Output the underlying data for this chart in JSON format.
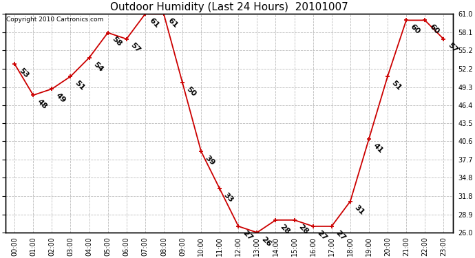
{
  "title": "Outdoor Humidity (Last 24 Hours)  20101007",
  "copyright": "Copyright 2010 Cartronics.com",
  "x_labels": [
    "00:00",
    "01:00",
    "02:00",
    "03:00",
    "04:00",
    "05:00",
    "06:00",
    "07:00",
    "08:00",
    "09:00",
    "10:00",
    "11:00",
    "12:00",
    "13:00",
    "14:00",
    "15:00",
    "16:00",
    "17:00",
    "18:00",
    "19:00",
    "20:00",
    "21:00",
    "22:00",
    "23:00"
  ],
  "y_values": [
    53,
    48,
    49,
    51,
    54,
    58,
    57,
    61,
    61,
    50,
    39,
    33,
    27,
    26,
    28,
    28,
    27,
    27,
    31,
    41,
    51,
    60,
    60,
    57
  ],
  "y_labels": [
    "26.0",
    "28.9",
    "31.8",
    "34.8",
    "37.7",
    "40.6",
    "43.5",
    "46.4",
    "49.3",
    "52.2",
    "55.2",
    "58.1",
    "61.0"
  ],
  "y_ticks": [
    26.0,
    28.9,
    31.8,
    34.8,
    37.7,
    40.6,
    43.5,
    46.4,
    49.3,
    52.2,
    55.2,
    58.1,
    61.0
  ],
  "ylim_min": 26.0,
  "ylim_max": 61.0,
  "line_color": "#cc0000",
  "marker_color": "#cc0000",
  "background_color": "#ffffff",
  "grid_color": "#bbbbbb",
  "title_fontsize": 11,
  "tick_fontsize": 7,
  "annotation_fontsize": 8,
  "copyright_fontsize": 6.5
}
